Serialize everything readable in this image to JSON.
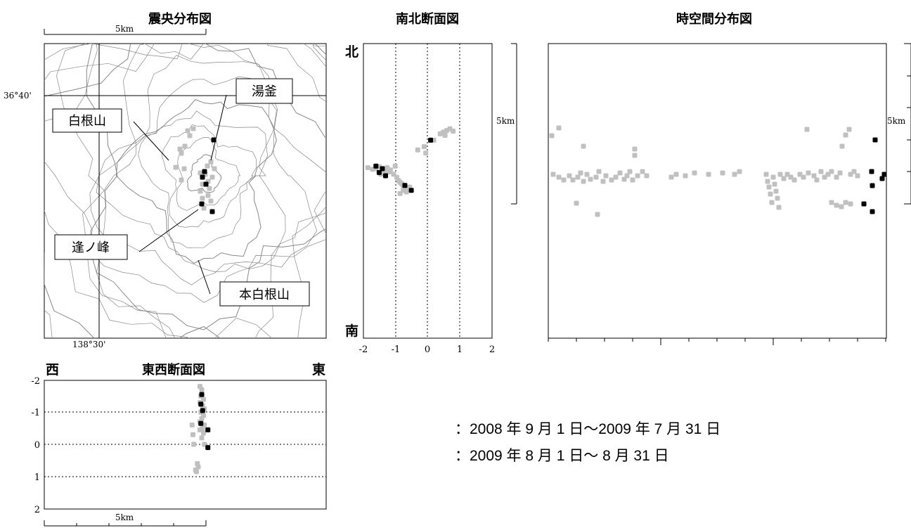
{
  "colors": {
    "period1": "#c0c0c0",
    "period2": "#000000",
    "contour": "#888888"
  },
  "map": {
    "title": "震央分布図",
    "scale_label": "5km",
    "lat_label": "36°40'",
    "lon_label": "138°30'",
    "volcano_labels": [
      "湯釜",
      "白根山",
      "逢ノ峰",
      "本白根山"
    ]
  },
  "ns": {
    "title": "南北断面図",
    "north": "北",
    "south": "南",
    "xticks": [
      "-2",
      "-1",
      "0",
      "1",
      "2"
    ],
    "scale_label": "5km"
  },
  "st": {
    "title": "時空間分布図",
    "scale_label": "5km"
  },
  "ew": {
    "title": "東西断面図",
    "west": "西",
    "east": "東",
    "yticks": [
      "-2",
      "-1",
      "0",
      "1",
      "2"
    ],
    "scale_label": "5km"
  },
  "legend": {
    "period1": "：2008 年 9 月 1 日～2009 年 7 月 31 日",
    "period2": "：2009 年 8 月 1 日～ 8 月 31 日"
  },
  "chart_data": [
    {
      "type": "scatter",
      "title": "南北断面図",
      "xlim": [
        -2,
        2
      ],
      "series": [
        {
          "color": "gray",
          "points": [
            [
              -1.85,
              -0.75
            ],
            [
              -1.7,
              -0.8
            ],
            [
              -1.6,
              -0.78
            ],
            [
              -1.5,
              -0.72
            ],
            [
              -1.4,
              -0.85
            ],
            [
              -1.3,
              -0.9
            ],
            [
              -1.25,
              -0.75
            ],
            [
              -1.15,
              -0.82
            ],
            [
              -1.05,
              -0.95
            ],
            [
              -1.0,
              -0.7
            ],
            [
              -0.95,
              -1.05
            ],
            [
              -0.9,
              -1.15
            ],
            [
              -0.85,
              -1.2
            ],
            [
              -0.8,
              -1.25
            ],
            [
              -0.75,
              -1.3
            ],
            [
              -0.7,
              -1.35
            ],
            [
              -0.6,
              -1.4
            ],
            [
              -0.55,
              -1.35
            ],
            [
              -0.75,
              -1.45
            ],
            [
              -0.65,
              -1.5
            ],
            [
              -0.85,
              -1.55
            ],
            [
              -1.2,
              -0.88
            ],
            [
              -1.45,
              -0.95
            ],
            [
              -0.3,
              -0.2
            ],
            [
              -0.1,
              -0.1
            ],
            [
              0.2,
              0.1
            ],
            [
              0.4,
              0.3
            ],
            [
              0.5,
              0.35
            ],
            [
              0.6,
              0.4
            ],
            [
              0.7,
              0.45
            ],
            [
              0.8,
              0.38
            ],
            [
              0.55,
              0.25
            ],
            [
              -0.05,
              -0.3
            ]
          ]
        },
        {
          "color": "black",
          "points": [
            [
              -1.6,
              -0.7
            ],
            [
              -1.4,
              -0.78
            ],
            [
              -1.5,
              -0.9
            ],
            [
              -1.3,
              -1.0
            ],
            [
              -0.7,
              -1.3
            ],
            [
              -0.5,
              -1.45
            ],
            [
              0.1,
              0.1
            ]
          ]
        }
      ]
    },
    {
      "type": "scatter",
      "title": "東西断面図",
      "ylim": [
        -2,
        2
      ],
      "series": [
        {
          "color": "gray",
          "points": [
            [
              -0.3,
              -1.8
            ],
            [
              -0.2,
              -1.7
            ],
            [
              -0.25,
              -1.5
            ],
            [
              -0.1,
              -1.4
            ],
            [
              -0.3,
              -1.3
            ],
            [
              -0.15,
              -1.2
            ],
            [
              -0.05,
              -1.1
            ],
            [
              -0.25,
              -1.0
            ],
            [
              -0.1,
              -0.9
            ],
            [
              -0.2,
              -0.8
            ],
            [
              -0.3,
              -0.7
            ],
            [
              -0.05,
              -0.6
            ],
            [
              -0.15,
              -0.5
            ],
            [
              -0.3,
              -0.45
            ],
            [
              -0.1,
              -0.35
            ],
            [
              -0.2,
              -0.2
            ],
            [
              -0.05,
              0.0
            ],
            [
              -0.75,
              -0.6
            ],
            [
              -0.7,
              -0.3
            ],
            [
              -0.65,
              0.0
            ],
            [
              -0.55,
              0.8
            ],
            [
              -0.45,
              0.6
            ],
            [
              -0.5,
              0.85
            ],
            [
              -0.4,
              0.7
            ]
          ]
        },
        {
          "color": "black",
          "points": [
            [
              -0.2,
              -1.55
            ],
            [
              -0.25,
              -1.25
            ],
            [
              -0.15,
              -1.05
            ],
            [
              -0.25,
              -0.65
            ],
            [
              0.15,
              -0.45
            ],
            [
              0.15,
              0.1
            ]
          ]
        }
      ]
    }
  ]
}
